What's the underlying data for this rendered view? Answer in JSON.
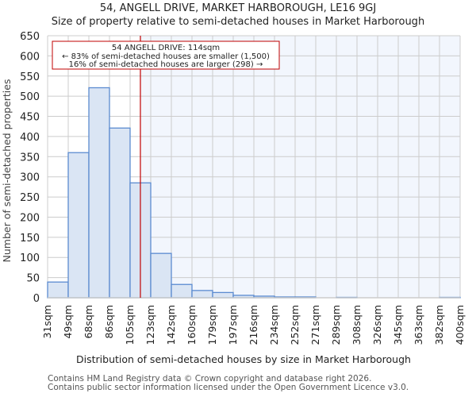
{
  "header": {
    "title": "54, ANGELL DRIVE, MARKET HARBOROUGH, LE16 9GJ",
    "subtitle": "Size of property relative to semi-detached houses in Market Harborough"
  },
  "annotation": {
    "line1": "54 ANGELL DRIVE: 114sqm",
    "line2": "← 83% of semi-detached houses are smaller (1,500)",
    "line3": "16% of semi-detached houses are larger (298) →"
  },
  "footer": {
    "line1": "Contains HM Land Registry data © Crown copyright and database right 2026.",
    "line2": "Contains public sector information licensed under the Open Government Licence v3.0."
  },
  "colors": {
    "bar_fill": "#dae5f4",
    "bar_stroke": "#5b8bd0",
    "highlight_bg": "#f2f6fd",
    "marker_line": "#c00000",
    "grid": "#cccccc"
  },
  "chart_data": {
    "type": "bar",
    "title": "54, ANGELL DRIVE, MARKET HARBOROUGH, LE16 9GJ",
    "subtitle": "Size of property relative to semi-detached houses in Market Harborough",
    "xlabel": "Distribution of semi-detached houses by size in Market Harborough",
    "ylabel": "Number of semi-detached properties",
    "categories": [
      "31sqm",
      "49sqm",
      "68sqm",
      "86sqm",
      "105sqm",
      "123sqm",
      "142sqm",
      "160sqm",
      "179sqm",
      "197sqm",
      "216sqm",
      "234sqm",
      "252sqm",
      "271sqm",
      "289sqm",
      "308sqm",
      "326sqm",
      "345sqm",
      "363sqm",
      "382sqm",
      "400sqm"
    ],
    "bin_edges": [
      31,
      49,
      68,
      86,
      105,
      123,
      142,
      160,
      179,
      197,
      216,
      234,
      252,
      271,
      289,
      308,
      326,
      345,
      363,
      382,
      400
    ],
    "values": [
      39,
      360,
      521,
      421,
      285,
      110,
      33,
      18,
      13,
      6,
      4,
      2,
      2,
      0,
      1,
      0,
      0,
      0,
      0,
      1
    ],
    "ylim": [
      0,
      650
    ],
    "yticks": [
      0,
      50,
      100,
      150,
      200,
      250,
      300,
      350,
      400,
      450,
      500,
      550,
      600,
      650
    ],
    "grid": true,
    "marker": {
      "value": 114,
      "label": "54 ANGELL DRIVE: 114sqm"
    }
  }
}
